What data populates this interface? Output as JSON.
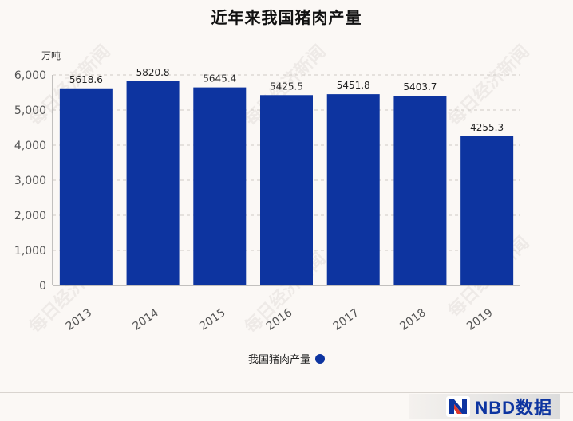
{
  "chart_data": {
    "type": "bar",
    "title": "近年来我国猪肉产量",
    "unit_label": "万吨",
    "categories": [
      "2013",
      "2014",
      "2015",
      "2016",
      "2017",
      "2018",
      "2019"
    ],
    "series": [
      {
        "name": "我国猪肉产量",
        "values": [
          5618.6,
          5820.8,
          5645.4,
          5425.5,
          5451.8,
          5403.7,
          4255.3
        ],
        "value_labels": [
          "5618.6",
          "5820.8",
          "5645.4",
          "5425.5",
          "5451.8",
          "5403.7",
          "4255.3"
        ],
        "color": "#0d34a0"
      }
    ],
    "ylim": [
      0,
      6000
    ],
    "yticks": [
      0,
      1000,
      2000,
      3000,
      4000,
      5000,
      6000
    ],
    "ytick_labels": [
      "0",
      "1,000",
      "2,000",
      "3,000",
      "4,000",
      "5,000",
      "6,000"
    ],
    "grid": true,
    "legend_position": "bottom-center"
  },
  "legend": {
    "label": "我国猪肉产量"
  },
  "brand": {
    "text": "NBD数据"
  },
  "watermark": {
    "text": "每日经济新闻"
  }
}
